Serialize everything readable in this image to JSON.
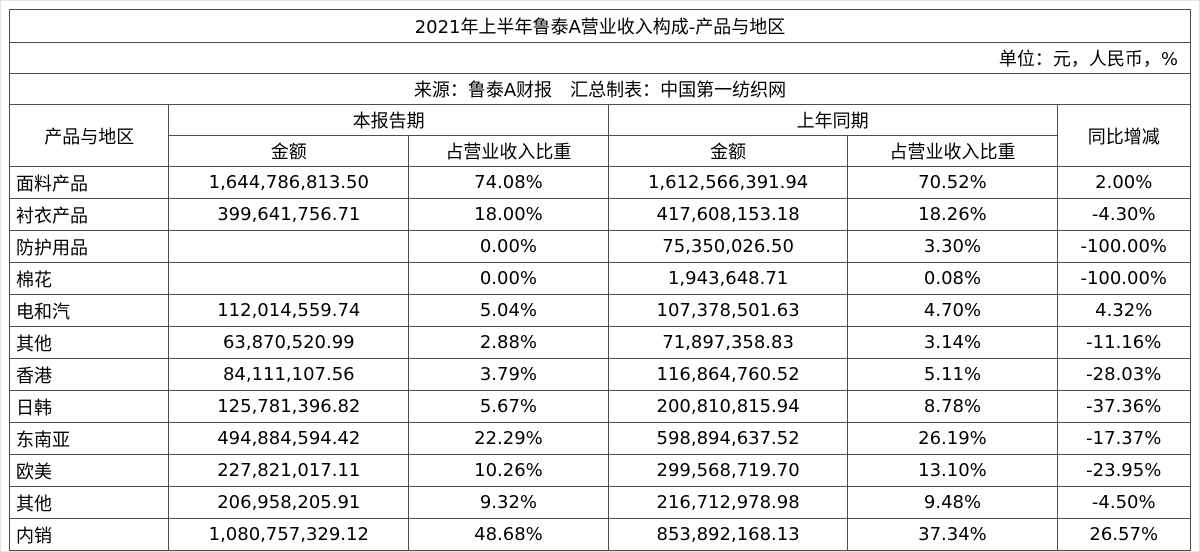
{
  "title": "2021年上半年鲁泰A营业收入构成-产品与地区",
  "unit_note": "单位：元，人民币，%",
  "source_note": "来源：鲁泰A财报　汇总制表：中国第一纺织网",
  "table": {
    "headers": {
      "product_region": "产品与地区",
      "current_period": "本报告期",
      "prior_period": "上年同期",
      "yoy": "同比增减",
      "amount": "金额",
      "share": "占营业收入比重"
    },
    "rows": [
      {
        "name": "面料产品",
        "cur_amount": "1,644,786,813.50",
        "cur_share": "74.08%",
        "prev_amount": "1,612,566,391.94",
        "prev_share": "70.52%",
        "yoy": "2.00%"
      },
      {
        "name": "衬衣产品",
        "cur_amount": "399,641,756.71",
        "cur_share": "18.00%",
        "prev_amount": "417,608,153.18",
        "prev_share": "18.26%",
        "yoy": "-4.30%"
      },
      {
        "name": "防护用品",
        "cur_amount": "",
        "cur_share": "0.00%",
        "prev_amount": "75,350,026.50",
        "prev_share": "3.30%",
        "yoy": "-100.00%"
      },
      {
        "name": "棉花",
        "cur_amount": "",
        "cur_share": "0.00%",
        "prev_amount": "1,943,648.71",
        "prev_share": "0.08%",
        "yoy": "-100.00%"
      },
      {
        "name": "电和汽",
        "cur_amount": "112,014,559.74",
        "cur_share": "5.04%",
        "prev_amount": "107,378,501.63",
        "prev_share": "4.70%",
        "yoy": "4.32%"
      },
      {
        "name": "其他",
        "cur_amount": "63,870,520.99",
        "cur_share": "2.88%",
        "prev_amount": "71,897,358.83",
        "prev_share": "3.14%",
        "yoy": "-11.16%"
      },
      {
        "name": "香港",
        "cur_amount": "84,111,107.56",
        "cur_share": "3.79%",
        "prev_amount": "116,864,760.52",
        "prev_share": "5.11%",
        "yoy": "-28.03%"
      },
      {
        "name": "日韩",
        "cur_amount": "125,781,396.82",
        "cur_share": "5.67%",
        "prev_amount": "200,810,815.94",
        "prev_share": "8.78%",
        "yoy": "-37.36%"
      },
      {
        "name": "东南亚",
        "cur_amount": "494,884,594.42",
        "cur_share": "22.29%",
        "prev_amount": "598,894,637.52",
        "prev_share": "26.19%",
        "yoy": "-17.37%"
      },
      {
        "name": "欧美",
        "cur_amount": "227,821,017.11",
        "cur_share": "10.26%",
        "prev_amount": "299,568,719.70",
        "prev_share": "13.10%",
        "yoy": "-23.95%"
      },
      {
        "name": "其他",
        "cur_amount": "206,958,205.91",
        "cur_share": "9.32%",
        "prev_amount": "216,712,978.98",
        "prev_share": "9.48%",
        "yoy": "-4.50%"
      },
      {
        "name": "内销",
        "cur_amount": "1,080,757,329.12",
        "cur_share": "48.68%",
        "prev_amount": "853,892,168.13",
        "prev_share": "37.34%",
        "yoy": "26.57%"
      }
    ]
  },
  "chart_data": {
    "type": "table",
    "title": "2021年上半年鲁泰A营业收入构成-产品与地区",
    "unit": "元，人民币，%",
    "source": "鲁泰A财报",
    "compiled_by": "中国第一纺织网",
    "columns": [
      "产品与地区",
      "本报告期-金额",
      "本报告期-占营业收入比重(%)",
      "上年同期-金额",
      "上年同期-占营业收入比重(%)",
      "同比增减(%)"
    ],
    "rows": [
      [
        "面料产品",
        1644786813.5,
        74.08,
        1612566391.94,
        70.52,
        2.0
      ],
      [
        "衬衣产品",
        399641756.71,
        18.0,
        417608153.18,
        18.26,
        -4.3
      ],
      [
        "防护用品",
        null,
        0.0,
        75350026.5,
        3.3,
        -100.0
      ],
      [
        "棉花",
        null,
        0.0,
        1943648.71,
        0.08,
        -100.0
      ],
      [
        "电和汽",
        112014559.74,
        5.04,
        107378501.63,
        4.7,
        4.32
      ],
      [
        "其他",
        63870520.99,
        2.88,
        71897358.83,
        3.14,
        -11.16
      ],
      [
        "香港",
        84111107.56,
        3.79,
        116864760.52,
        5.11,
        -28.03
      ],
      [
        "日韩",
        125781396.82,
        5.67,
        200810815.94,
        8.78,
        -37.36
      ],
      [
        "东南亚",
        494884594.42,
        22.29,
        598894637.52,
        26.19,
        -17.37
      ],
      [
        "欧美",
        227821017.11,
        10.26,
        299568719.7,
        13.1,
        -23.95
      ],
      [
        "其他",
        206958205.91,
        9.32,
        216712978.98,
        9.48,
        -4.5
      ],
      [
        "内销",
        1080757329.12,
        48.68,
        853892168.13,
        37.34,
        26.57
      ]
    ]
  }
}
